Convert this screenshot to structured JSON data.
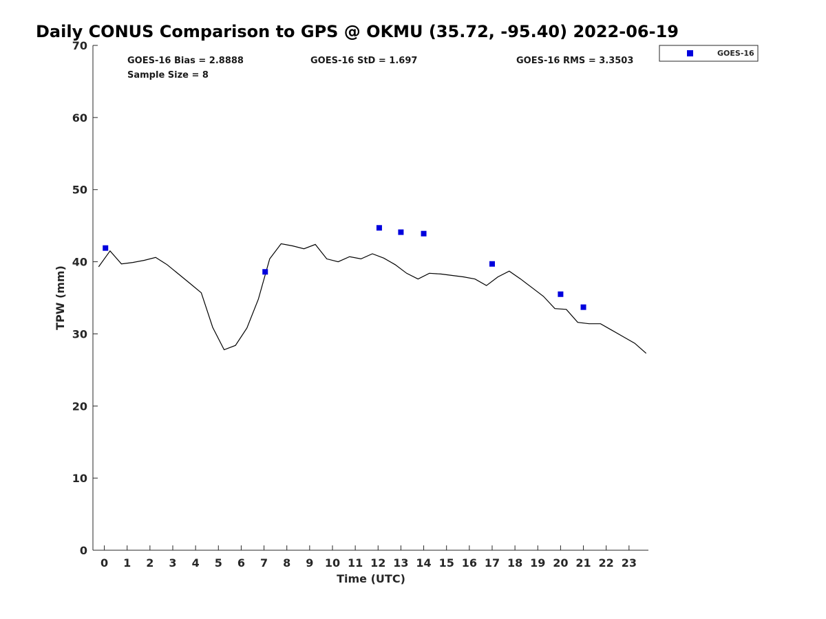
{
  "chart_data": {
    "type": "scatter",
    "title": "Daily CONUS Comparison to GPS @ OKMU (35.72, -95.40) 2022-06-19",
    "xlabel": "Time (UTC)",
    "ylabel": "TPW (mm)",
    "xlim": [
      -0.5,
      23.85
    ],
    "ylim": [
      0,
      70
    ],
    "x_ticks": [
      "0",
      "1",
      "2",
      "3",
      "4",
      "5",
      "6",
      "7",
      "8",
      "9",
      "10",
      "11",
      "12",
      "13",
      "14",
      "15",
      "16",
      "17",
      "18",
      "19",
      "20",
      "21",
      "22",
      "23"
    ],
    "y_ticks": [
      "0",
      "10",
      "20",
      "30",
      "40",
      "50",
      "60",
      "70"
    ],
    "grid": false,
    "legend": {
      "position": "top-right",
      "entries": [
        "GOES-16"
      ]
    },
    "stats": {
      "bias": "GOES-16 Bias = 2.8888",
      "std": "GOES-16 StD = 1.697",
      "rms": "GOES-16 RMS = 3.3503",
      "sample": "Sample Size = 8"
    },
    "series": [
      {
        "name": "GOES-16",
        "kind": "scatter",
        "color": "#0000dd",
        "points": [
          [
            0.05,
            41.9
          ],
          [
            7.05,
            38.6
          ],
          [
            12.05,
            44.7
          ],
          [
            13.0,
            44.1
          ],
          [
            14.0,
            43.9
          ],
          [
            17.0,
            39.7
          ],
          [
            20.0,
            35.5
          ],
          [
            21.0,
            33.7
          ]
        ]
      },
      {
        "kind": "line",
        "color": "#000000",
        "points": [
          [
            -0.25,
            39.3
          ],
          [
            0.25,
            41.5
          ],
          [
            0.75,
            39.7
          ],
          [
            1.25,
            39.9
          ],
          [
            1.75,
            40.2
          ],
          [
            2.25,
            40.6
          ],
          [
            2.75,
            39.6
          ],
          [
            3.25,
            38.3
          ],
          [
            3.75,
            37.0
          ],
          [
            4.25,
            35.7
          ],
          [
            4.75,
            30.9
          ],
          [
            5.25,
            27.8
          ],
          [
            5.75,
            28.4
          ],
          [
            6.25,
            30.8
          ],
          [
            6.75,
            34.8
          ],
          [
            7.25,
            40.4
          ],
          [
            7.75,
            42.5
          ],
          [
            8.25,
            42.2
          ],
          [
            8.75,
            41.8
          ],
          [
            9.25,
            42.4
          ],
          [
            9.75,
            40.4
          ],
          [
            10.25,
            40.0
          ],
          [
            10.75,
            40.7
          ],
          [
            11.25,
            40.4
          ],
          [
            11.75,
            41.1
          ],
          [
            12.25,
            40.5
          ],
          [
            12.75,
            39.6
          ],
          [
            13.25,
            38.4
          ],
          [
            13.75,
            37.6
          ],
          [
            14.25,
            38.4
          ],
          [
            14.75,
            38.3
          ],
          [
            15.25,
            38.1
          ],
          [
            15.75,
            37.9
          ],
          [
            16.25,
            37.6
          ],
          [
            16.75,
            36.7
          ],
          [
            17.25,
            37.9
          ],
          [
            17.75,
            38.7
          ],
          [
            18.25,
            37.6
          ],
          [
            18.75,
            36.4
          ],
          [
            19.25,
            35.2
          ],
          [
            19.75,
            33.5
          ],
          [
            20.25,
            33.4
          ],
          [
            20.75,
            31.6
          ],
          [
            21.25,
            31.4
          ],
          [
            21.75,
            31.4
          ],
          [
            22.25,
            30.5
          ],
          [
            22.75,
            29.6
          ],
          [
            23.25,
            28.7
          ],
          [
            23.75,
            27.3
          ]
        ]
      }
    ]
  }
}
